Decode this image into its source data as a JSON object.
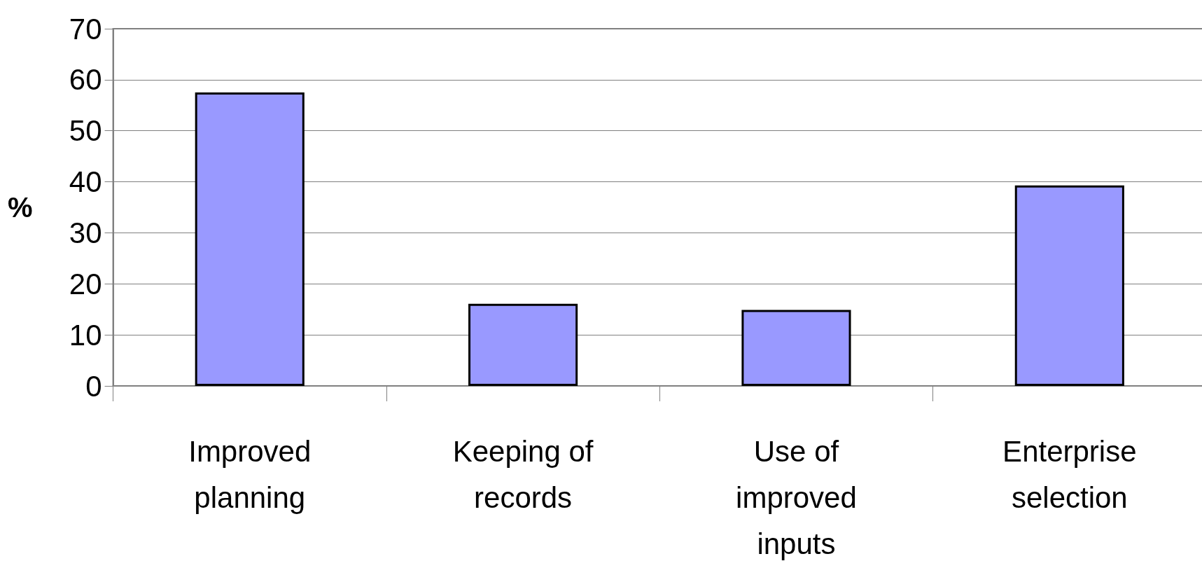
{
  "chart_data": {
    "type": "bar",
    "ylabel": "%",
    "categories": [
      "Improved planning",
      "Keeping of records",
      "Use of improved inputs",
      "Enterprise selection"
    ],
    "values": [
      57.5,
      16.1,
      14.9,
      39.3
    ],
    "color": "#9999ff",
    "ylim": [
      0,
      70
    ],
    "yticks": [
      0,
      10,
      20,
      30,
      40,
      50,
      60,
      70
    ],
    "grid": "y"
  }
}
